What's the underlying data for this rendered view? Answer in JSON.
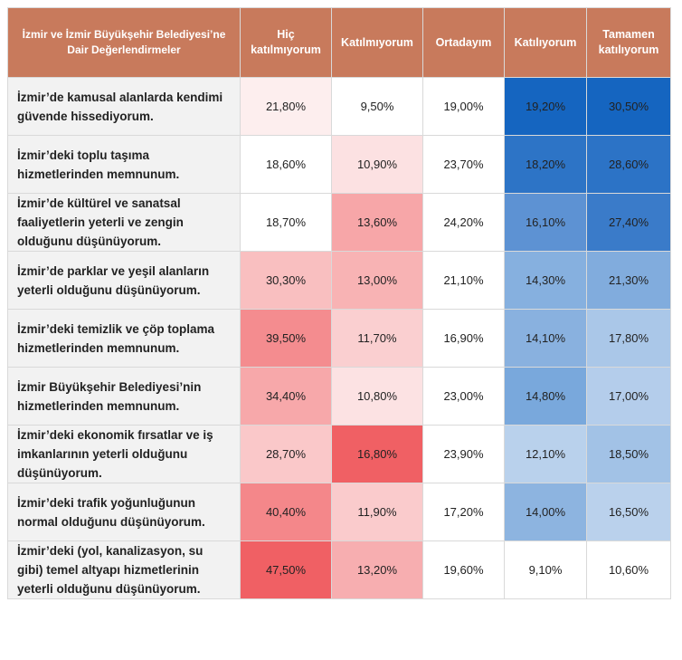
{
  "table": {
    "header": [
      "İzmir ve İzmir Büyükşehir Belediyesi’ne Dair Değerlendirmeler",
      "Hiç katılmıyorum",
      "Katılmıyorum",
      "Ortadayım",
      "Katılıyorum",
      "Tamamen katılıyorum"
    ],
    "rows": [
      [
        "İzmir’de kamusal alanlarda kendimi güvende hissediyorum.",
        "21,80%",
        "9,50%",
        "19,00%",
        "19,20%",
        "30,50%"
      ],
      [
        "İzmir’deki toplu taşıma hizmetlerinden memnunum.",
        "18,60%",
        "10,90%",
        "23,70%",
        "18,20%",
        "28,60%"
      ],
      [
        "İzmir’de kültürel ve sanatsal faaliyetlerin yeterli ve zengin olduğunu düşünüyorum.",
        "18,70%",
        "13,60%",
        "24,20%",
        "16,10%",
        "27,40%"
      ],
      [
        "İzmir’de parklar ve yeşil alanların yeterli olduğunu düşünüyorum.",
        "30,30%",
        "13,00%",
        "21,10%",
        "14,30%",
        "21,30%"
      ],
      [
        "İzmir’deki temizlik ve çöp toplama hizmetlerinden memnunum.",
        "39,50%",
        "11,70%",
        "16,90%",
        "14,10%",
        "17,80%"
      ],
      [
        "İzmir Büyükşehir Belediyesi’nin hizmetlerinden memnunum.",
        "34,40%",
        "10,80%",
        "23,00%",
        "14,80%",
        "17,00%"
      ],
      [
        "İzmir’deki ekonomik fırsatlar ve iş imkanlarının yeterli olduğunu düşünüyorum.",
        "28,70%",
        "16,80%",
        "23,90%",
        "12,10%",
        "18,50%"
      ],
      [
        "İzmir’deki trafik yoğunluğunun normal olduğunu düşünüyorum.",
        "40,40%",
        "11,90%",
        "17,20%",
        "14,00%",
        "16,50%"
      ],
      [
        "İzmir’deki (yol, kanalizasyon, su gibi) temel altyapı hizmetlerinin yeterli olduğunu düşünüyorum.",
        "47,50%",
        "13,20%",
        "19,60%",
        "9,10%",
        "10,60%"
      ]
    ],
    "cell_colors": [
      [
        "#f2f2f2",
        "#fdeeee",
        "#ffffff",
        "#ffffff",
        "#1565c0",
        "#1565c0"
      ],
      [
        "#f2f2f2",
        "#ffffff",
        "#fce1e2",
        "#ffffff",
        "#2d74c6",
        "#2c73c6"
      ],
      [
        "#f2f2f2",
        "#ffffff",
        "#f7a6a8",
        "#ffffff",
        "#5d92d3",
        "#3a7bc9"
      ],
      [
        "#f2f2f2",
        "#f9bfc0",
        "#f8b3b4",
        "#ffffff",
        "#86b0df",
        "#81acdd"
      ],
      [
        "#f2f2f2",
        "#f48c8f",
        "#facfd0",
        "#ffffff",
        "#89b1df",
        "#aac7e8"
      ],
      [
        "#f2f2f2",
        "#f7a8aa",
        "#fce2e3",
        "#ffffff",
        "#79a8dc",
        "#b4cdeb"
      ],
      [
        "#f2f2f2",
        "#fac8c9",
        "#f06064",
        "#ffffff",
        "#b9d1ec",
        "#a2c2e6"
      ],
      [
        "#f2f2f2",
        "#f4878a",
        "#facbcc",
        "#ffffff",
        "#8db4e0",
        "#bad1ec"
      ],
      [
        "#f2f2f2",
        "#f06064",
        "#f7aeb0",
        "#ffffff",
        "#ffffff",
        "#ffffff"
      ]
    ],
    "header_color": "#c87a5c"
  }
}
